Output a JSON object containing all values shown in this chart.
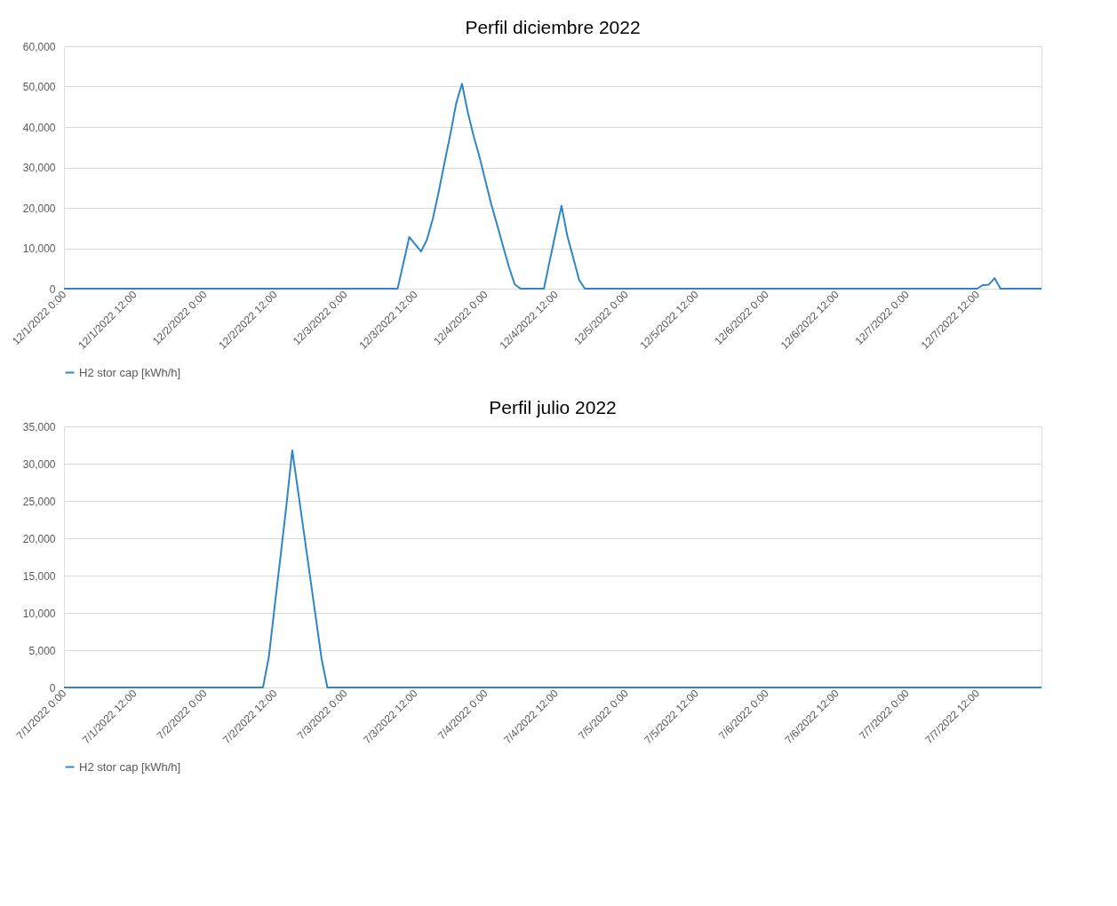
{
  "chart_data": [
    {
      "type": "line",
      "title": "Perfil diciembre 2022",
      "grid": "y",
      "legend": "bottom",
      "marker": "none",
      "line_style": "solid",
      "xlim": [
        "2022-12-01T00:00",
        "2022-12-07T23:00"
      ],
      "xticks": [
        {
          "value": "2022-12-01T00:00",
          "label": "12/1/2022 0:00"
        },
        {
          "value": "2022-12-01T12:00",
          "label": "12/1/2022 12:00"
        },
        {
          "value": "2022-12-02T00:00",
          "label": "12/2/2022 0:00"
        },
        {
          "value": "2022-12-02T12:00",
          "label": "12/2/2022 12:00"
        },
        {
          "value": "2022-12-03T00:00",
          "label": "12/3/2022 0:00"
        },
        {
          "value": "2022-12-03T12:00",
          "label": "12/3/2022 12:00"
        },
        {
          "value": "2022-12-04T00:00",
          "label": "12/4/2022 0:00"
        },
        {
          "value": "2022-12-04T12:00",
          "label": "12/4/2022 12:00"
        },
        {
          "value": "2022-12-05T00:00",
          "label": "12/5/2022 0:00"
        },
        {
          "value": "2022-12-05T12:00",
          "label": "12/5/2022 12:00"
        },
        {
          "value": "2022-12-06T00:00",
          "label": "12/6/2022 0:00"
        },
        {
          "value": "2022-12-06T12:00",
          "label": "12/6/2022 12:00"
        },
        {
          "value": "2022-12-07T00:00",
          "label": "12/7/2022 0:00"
        },
        {
          "value": "2022-12-07T12:00",
          "label": "12/7/2022 12:00"
        }
      ],
      "ylim": [
        0,
        60000
      ],
      "yticks": [
        {
          "value": 0,
          "label": "0"
        },
        {
          "value": 10000,
          "label": "10,000"
        },
        {
          "value": 20000,
          "label": "20,000"
        },
        {
          "value": 30000,
          "label": "30,000"
        },
        {
          "value": 40000,
          "label": "40,000"
        },
        {
          "value": 50000,
          "label": "50,000"
        },
        {
          "value": 60000,
          "label": "60,000"
        }
      ],
      "series": [
        {
          "name": "H2 stor cap [kWh/h]",
          "color": "#2e86c8",
          "x": [
            "2022-12-01T00:00",
            "2022-12-03T09:00",
            "2022-12-03T11:00",
            "2022-12-03T13:00",
            "2022-12-03T14:00",
            "2022-12-03T15:00",
            "2022-12-03T16:00",
            "2022-12-03T17:00",
            "2022-12-03T18:00",
            "2022-12-03T19:00",
            "2022-12-03T20:00",
            "2022-12-03T21:00",
            "2022-12-03T22:00",
            "2022-12-03T23:00",
            "2022-12-04T00:00",
            "2022-12-04T01:00",
            "2022-12-04T02:00",
            "2022-12-04T03:00",
            "2022-12-04T04:00",
            "2022-12-04T05:00",
            "2022-12-04T06:00",
            "2022-12-04T10:00",
            "2022-12-04T11:00",
            "2022-12-04T12:00",
            "2022-12-04T13:00",
            "2022-12-04T14:00",
            "2022-12-04T15:00",
            "2022-12-04T16:00",
            "2022-12-04T17:00",
            "2022-12-07T12:00",
            "2022-12-07T13:00",
            "2022-12-07T14:00",
            "2022-12-07T15:00",
            "2022-12-07T16:00",
            "2022-12-07T23:00"
          ],
          "values": [
            0,
            0,
            12800,
            9200,
            12100,
            17200,
            23800,
            31100,
            38100,
            45800,
            50700,
            43600,
            37700,
            32600,
            26700,
            20900,
            15800,
            10600,
            5500,
            1100,
            0,
            0,
            7000,
            13800,
            20500,
            13000,
            7700,
            2200,
            0,
            0,
            900,
            1000,
            2600,
            0,
            0
          ]
        }
      ]
    },
    {
      "type": "line",
      "title": "Perfil julio 2022",
      "grid": "y",
      "legend": "bottom",
      "marker": "none",
      "line_style": "solid",
      "xlim": [
        "2022-07-01T00:00",
        "2022-07-07T23:00"
      ],
      "xticks": [
        {
          "value": "2022-07-01T00:00",
          "label": "7/1/2022 0:00"
        },
        {
          "value": "2022-07-01T12:00",
          "label": "7/1/2022 12:00"
        },
        {
          "value": "2022-07-02T00:00",
          "label": "7/2/2022 0:00"
        },
        {
          "value": "2022-07-02T12:00",
          "label": "7/2/2022 12:00"
        },
        {
          "value": "2022-07-03T00:00",
          "label": "7/3/2022 0:00"
        },
        {
          "value": "2022-07-03T12:00",
          "label": "7/3/2022 12:00"
        },
        {
          "value": "2022-07-04T00:00",
          "label": "7/4/2022 0:00"
        },
        {
          "value": "2022-07-04T12:00",
          "label": "7/4/2022 12:00"
        },
        {
          "value": "2022-07-05T00:00",
          "label": "7/5/2022 0:00"
        },
        {
          "value": "2022-07-05T12:00",
          "label": "7/5/2022 12:00"
        },
        {
          "value": "2022-07-06T00:00",
          "label": "7/6/2022 0:00"
        },
        {
          "value": "2022-07-06T12:00",
          "label": "7/6/2022 12:00"
        },
        {
          "value": "2022-07-07T00:00",
          "label": "7/7/2022 0:00"
        },
        {
          "value": "2022-07-07T12:00",
          "label": "7/7/2022 12:00"
        }
      ],
      "ylim": [
        0,
        35000
      ],
      "yticks": [
        {
          "value": 0,
          "label": "0"
        },
        {
          "value": 5000,
          "label": "5,000"
        },
        {
          "value": 10000,
          "label": "10,000"
        },
        {
          "value": 15000,
          "label": "15,000"
        },
        {
          "value": 20000,
          "label": "20,000"
        },
        {
          "value": 25000,
          "label": "25,000"
        },
        {
          "value": 30000,
          "label": "30,000"
        },
        {
          "value": 35000,
          "label": "35,000"
        }
      ],
      "series": [
        {
          "name": "H2 stor cap [kWh/h]",
          "color": "#2e86c8",
          "x": [
            "2022-07-01T00:00",
            "2022-07-02T10:00",
            "2022-07-02T11:00",
            "2022-07-02T12:00",
            "2022-07-02T13:00",
            "2022-07-02T14:00",
            "2022-07-02T15:00",
            "2022-07-02T16:00",
            "2022-07-02T17:00",
            "2022-07-02T18:00",
            "2022-07-02T19:00",
            "2022-07-02T20:00",
            "2022-07-02T21:00",
            "2022-07-07T23:00"
          ],
          "values": [
            0,
            0,
            4100,
            10900,
            17600,
            24400,
            31800,
            26300,
            20700,
            15100,
            9500,
            3900,
            0,
            0
          ]
        }
      ]
    }
  ]
}
